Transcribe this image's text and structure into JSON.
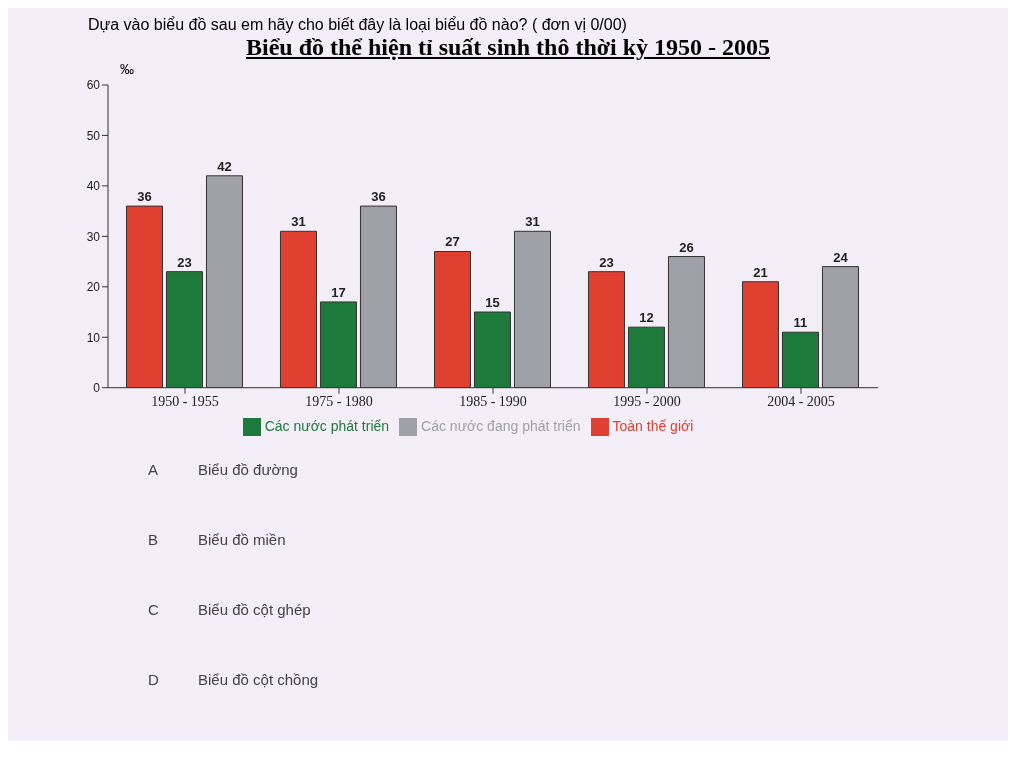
{
  "chart_data": {
    "type": "bar",
    "title": "Biểu đồ thể hiện tỉ suất sinh thô thời kỳ 1950 - 2005",
    "subtitle": "Dựa vào biểu đồ sau em hãy cho biết đây là loại biểu đồ nào? ( đơn vị 0/00)",
    "ylabel": "‰",
    "categories": [
      "1950 - 1955",
      "1975 - 1980",
      "1985 - 1990",
      "1995 - 2000",
      "2004 - 2005"
    ],
    "series": [
      {
        "name": "Toàn thế giới",
        "color": "#e0402f",
        "values": [
          36,
          31,
          27,
          23,
          21
        ]
      },
      {
        "name": "Các nước phát triển",
        "color": "#1e7a3a",
        "values": [
          23,
          17,
          15,
          12,
          11
        ]
      },
      {
        "name": "Các nước đang phát triển",
        "color": "#a0a0a8",
        "values": [
          42,
          36,
          31,
          26,
          24
        ]
      }
    ],
    "ylim": [
      0,
      60
    ],
    "yticks": [
      0,
      10,
      20,
      30,
      40,
      50,
      60
    ],
    "grid": false,
    "legend": "bottom",
    "data_labels": true,
    "annotations": [
      "A",
      "Biểu đồ đường",
      "B",
      "Biểu đồ miền",
      "C",
      "Biểu đồ cột ghép",
      "D",
      "Biểu đồ cột chồng"
    ]
  }
}
